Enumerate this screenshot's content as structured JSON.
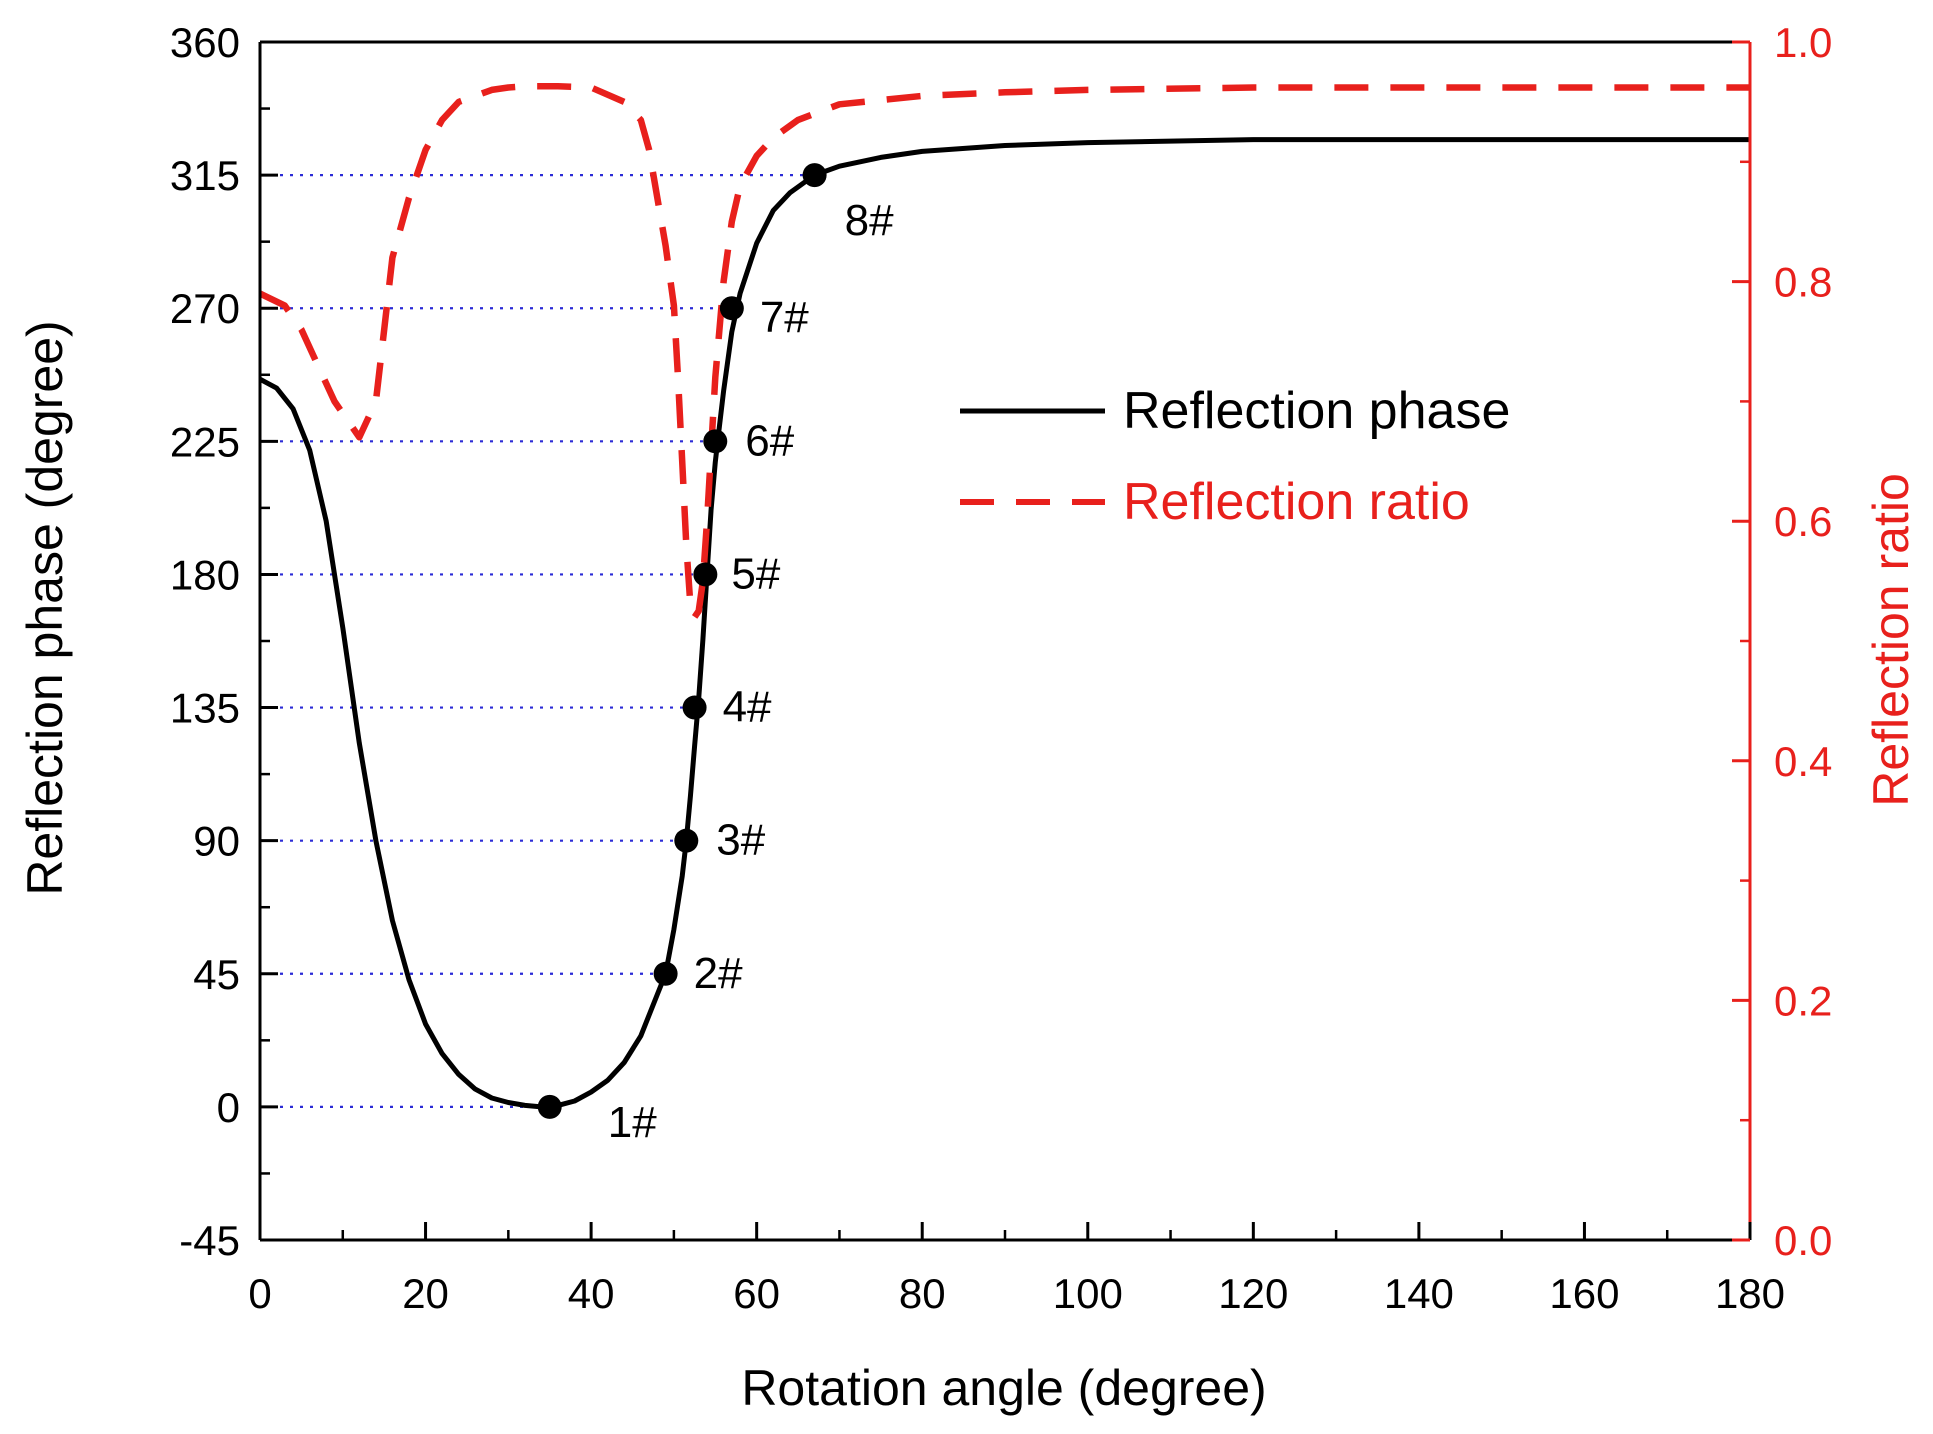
{
  "chart_data": {
    "type": "line",
    "xlabel": "Rotation angle (degree)",
    "ylabel_left": "Reflection phase (degree)",
    "ylabel_right": "Reflection ratio",
    "xlim": [
      0,
      180
    ],
    "ylim_left": [
      -45,
      360
    ],
    "ylim_right": [
      0.0,
      1.0
    ],
    "x_ticks": [
      "0",
      "20",
      "40",
      "60",
      "80",
      "100",
      "120",
      "140",
      "160",
      "180"
    ],
    "y_left_ticks": [
      "-45",
      "0",
      "45",
      "90",
      "135",
      "180",
      "225",
      "270",
      "315",
      "360"
    ],
    "y_right_ticks": [
      "0.0",
      "0.2",
      "0.4",
      "0.6",
      "0.8",
      "1.0"
    ],
    "legend": {
      "position": "upper-center-right",
      "entries": [
        {
          "label": "Reflection phase",
          "style": "solid",
          "color": "#000000"
        },
        {
          "label": "Reflection ratio",
          "style": "dashed",
          "color": "#e8201c"
        }
      ]
    },
    "series": [
      {
        "name": "Reflection phase",
        "axis": "left",
        "color": "#000000",
        "style": "solid",
        "x": [
          0,
          2,
          4,
          6,
          8,
          10,
          12,
          14,
          16,
          18,
          20,
          22,
          24,
          26,
          28,
          30,
          32,
          34,
          35,
          36,
          38,
          40,
          42,
          44,
          46,
          48,
          49,
          50,
          51,
          51.5,
          52,
          52.5,
          53,
          53.5,
          54,
          54.5,
          55,
          55.5,
          56,
          57,
          58,
          60,
          62,
          64,
          66,
          67,
          70,
          75,
          80,
          90,
          100,
          120,
          140,
          160,
          180
        ],
        "y": [
          246,
          243,
          236,
          222,
          198,
          162,
          123,
          90,
          63,
          43,
          28,
          18,
          11,
          6,
          3,
          1.5,
          0.5,
          0,
          0,
          0.5,
          2,
          5,
          9,
          15,
          24,
          38,
          45,
          60,
          78,
          90,
          105,
          122,
          138,
          158,
          180,
          202,
          218,
          230,
          242,
          262,
          275,
          292,
          303,
          309,
          313,
          315,
          318,
          321,
          323,
          325,
          326,
          327,
          327,
          327,
          327
        ]
      },
      {
        "name": "Reflection ratio",
        "axis": "right",
        "color": "#e8201c",
        "style": "dashed",
        "x": [
          0,
          3,
          5,
          7,
          9,
          12,
          14,
          15,
          16,
          18,
          20,
          22,
          24,
          26,
          28,
          30,
          32,
          36,
          40,
          44,
          46,
          47,
          48,
          49,
          50,
          50.5,
          51,
          51.5,
          52,
          52.5,
          53,
          53.5,
          54,
          55,
          56,
          57,
          58,
          60,
          62,
          65,
          70,
          80,
          90,
          100,
          120,
          140,
          160,
          180
        ],
        "y": [
          0.79,
          0.78,
          0.76,
          0.73,
          0.7,
          0.67,
          0.7,
          0.76,
          0.82,
          0.87,
          0.91,
          0.935,
          0.95,
          0.955,
          0.96,
          0.962,
          0.963,
          0.963,
          0.962,
          0.95,
          0.935,
          0.91,
          0.87,
          0.83,
          0.78,
          0.72,
          0.65,
          0.58,
          0.53,
          0.52,
          0.525,
          0.55,
          0.6,
          0.72,
          0.8,
          0.85,
          0.88,
          0.905,
          0.92,
          0.935,
          0.948,
          0.955,
          0.958,
          0.96,
          0.962,
          0.962,
          0.962,
          0.962
        ]
      }
    ],
    "marked_points": [
      {
        "label": "1#",
        "x": 35,
        "y": 0
      },
      {
        "label": "2#",
        "x": 49,
        "y": 45
      },
      {
        "label": "3#",
        "x": 51.5,
        "y": 90
      },
      {
        "label": "4#",
        "x": 52.5,
        "y": 135
      },
      {
        "label": "5#",
        "x": 53.8,
        "y": 180
      },
      {
        "label": "6#",
        "x": 55,
        "y": 225
      },
      {
        "label": "7#",
        "x": 57,
        "y": 270
      },
      {
        "label": "8#",
        "x": 67,
        "y": 315
      }
    ],
    "reference_lines": {
      "color": "#2b2bd6",
      "style": "dotted",
      "description_values": [
        0,
        45,
        90,
        135,
        180,
        225,
        270,
        315
      ]
    }
  }
}
